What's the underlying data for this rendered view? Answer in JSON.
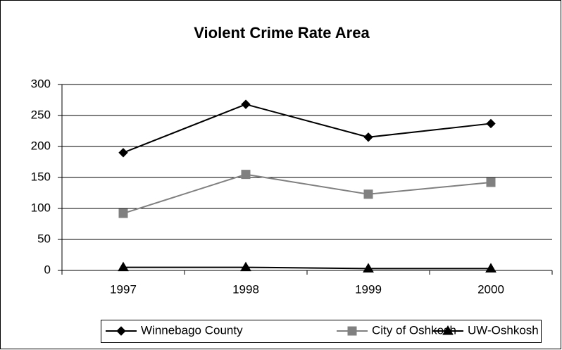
{
  "chart_data": {
    "type": "line",
    "title": "Violent Crime Rate Area",
    "categories": [
      "1997",
      "1998",
      "1999",
      "2000"
    ],
    "series": [
      {
        "name": "Winnebago County",
        "color": "#000000",
        "marker": "diamond",
        "values": [
          190,
          268,
          215,
          237
        ]
      },
      {
        "name": "City of Oshkosh",
        "color": "#808080",
        "marker": "square",
        "values": [
          92,
          155,
          123,
          142
        ]
      },
      {
        "name": "UW-Oshkosh",
        "color": "#000000",
        "marker": "triangle",
        "values": [
          5,
          5,
          3,
          3
        ]
      }
    ],
    "ylim": [
      0,
      300
    ],
    "yticks": [
      0,
      50,
      100,
      150,
      200,
      250,
      300
    ],
    "grid": true,
    "legend": "bottom"
  }
}
